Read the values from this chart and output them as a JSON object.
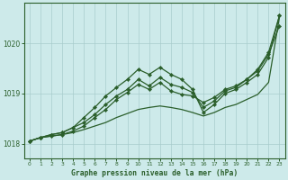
{
  "title": "Graphe pression niveau de la mer (hPa)",
  "hours": [
    0,
    1,
    2,
    3,
    4,
    5,
    6,
    7,
    8,
    9,
    10,
    11,
    12,
    13,
    14,
    15,
    16,
    17,
    18,
    19,
    20,
    21,
    22,
    23
  ],
  "ylim": [
    1017.7,
    1020.8
  ],
  "yticks": [
    1018,
    1019,
    1020
  ],
  "bg_color": "#cdeaea",
  "grid_color": "#a8cccc",
  "line_color": "#2a5e2a",
  "lines": [
    [
      1018.05,
      1018.12,
      1018.15,
      1018.18,
      1018.22,
      1018.28,
      1018.35,
      1018.42,
      1018.52,
      1018.6,
      1018.68,
      1018.72,
      1018.75,
      1018.72,
      1018.68,
      1018.62,
      1018.55,
      1018.62,
      1018.72,
      1018.78,
      1018.88,
      1018.98,
      1019.22,
      1020.52
    ],
    [
      1018.05,
      1018.12,
      1018.15,
      1018.18,
      1018.25,
      1018.35,
      1018.52,
      1018.68,
      1018.88,
      1019.02,
      1019.18,
      1019.08,
      1019.22,
      1019.05,
      1018.98,
      1018.95,
      1018.82,
      1018.92,
      1019.08,
      1019.15,
      1019.28,
      1019.45,
      1019.78,
      1020.35
    ],
    [
      1018.05,
      1018.12,
      1018.18,
      1018.22,
      1018.32,
      1018.42,
      1018.58,
      1018.78,
      1018.95,
      1019.08,
      1019.28,
      1019.15,
      1019.32,
      1019.18,
      1019.12,
      1019.02,
      1018.72,
      1018.85,
      1019.05,
      1019.12,
      1019.28,
      1019.48,
      1019.82,
      1020.55
    ],
    [
      1018.05,
      1018.12,
      1018.18,
      1018.22,
      1018.32,
      1018.52,
      1018.72,
      1018.95,
      1019.12,
      1019.28,
      1019.48,
      1019.38,
      1019.52,
      1019.38,
      1019.28,
      1019.08,
      1018.62,
      1018.78,
      1019.0,
      1019.08,
      1019.22,
      1019.38,
      1019.72,
      1020.55
    ]
  ]
}
